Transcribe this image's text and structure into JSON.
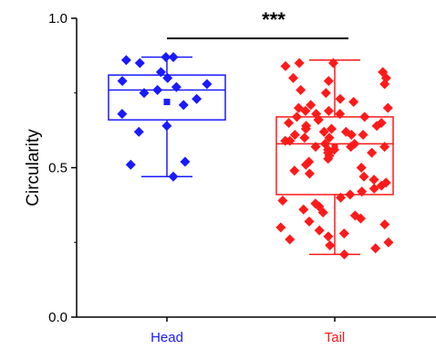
{
  "chart_data": {
    "type": "box-scatter",
    "title": "",
    "xlabel": "",
    "ylabel": "Circularity",
    "ylim": [
      0.0,
      1.0
    ],
    "yticks": [
      0.0,
      0.5,
      1.0
    ],
    "y_tick_labels": [
      "0.0",
      "0.5",
      "1.0"
    ],
    "categories": [
      "Head",
      "Tail"
    ],
    "significance": "***",
    "grid": false,
    "groups": [
      {
        "name": "Head",
        "color": "#1a1aff",
        "box": {
          "q1": 0.66,
          "median": 0.76,
          "q3": 0.81,
          "mean": 0.72,
          "whisker_low": 0.47,
          "whisker_high": 0.87
        },
        "points": [
          0.87,
          0.87,
          0.86,
          0.85,
          0.82,
          0.8,
          0.79,
          0.78,
          0.77,
          0.76,
          0.75,
          0.73,
          0.71,
          0.68,
          0.64,
          0.62,
          0.52,
          0.51,
          0.47
        ]
      },
      {
        "name": "Tail",
        "color": "#ff1a1a",
        "box": {
          "q1": 0.41,
          "median": 0.58,
          "q3": 0.67,
          "mean": 0.57,
          "whisker_low": 0.21,
          "whisker_high": 0.86
        },
        "points": [
          0.85,
          0.85,
          0.84,
          0.82,
          0.8,
          0.8,
          0.79,
          0.78,
          0.76,
          0.75,
          0.73,
          0.72,
          0.71,
          0.7,
          0.7,
          0.69,
          0.69,
          0.68,
          0.68,
          0.67,
          0.67,
          0.66,
          0.66,
          0.65,
          0.65,
          0.64,
          0.64,
          0.63,
          0.63,
          0.62,
          0.62,
          0.61,
          0.61,
          0.61,
          0.6,
          0.6,
          0.59,
          0.59,
          0.58,
          0.58,
          0.57,
          0.57,
          0.57,
          0.56,
          0.56,
          0.55,
          0.55,
          0.54,
          0.53,
          0.52,
          0.51,
          0.5,
          0.49,
          0.48,
          0.47,
          0.46,
          0.45,
          0.44,
          0.43,
          0.42,
          0.41,
          0.4,
          0.39,
          0.38,
          0.37,
          0.36,
          0.35,
          0.34,
          0.33,
          0.32,
          0.31,
          0.3,
          0.29,
          0.28,
          0.27,
          0.26,
          0.25,
          0.24,
          0.23,
          0.21
        ]
      }
    ]
  }
}
